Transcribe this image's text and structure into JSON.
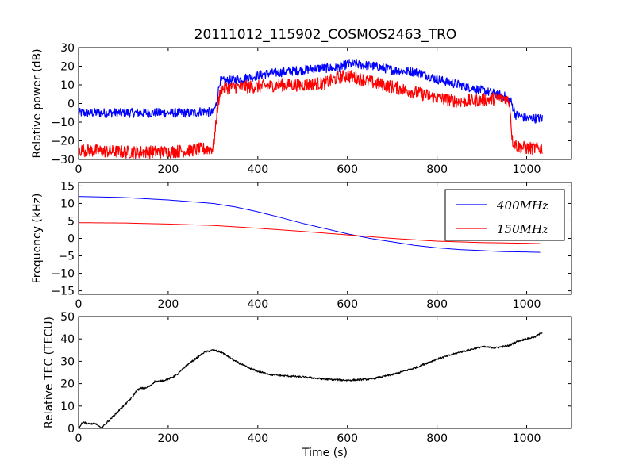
{
  "figure": {
    "title": "20111012_115902_COSMOS2463_TRO",
    "background": "#ffffff"
  },
  "chart_data": [
    {
      "type": "line",
      "title": "20111012_115902_COSMOS2463_TRO",
      "xlabel": "",
      "ylabel": "Relative power (dB)",
      "xlim": [
        0,
        1100
      ],
      "ylim": [
        -30,
        30
      ],
      "xticks": [
        0,
        200,
        400,
        600,
        800,
        1000
      ],
      "yticks": [
        -30,
        -20,
        -10,
        0,
        10,
        20,
        30
      ],
      "grid": false,
      "series": [
        {
          "color": "#0000ff",
          "noise": 2.5,
          "points": [
            [
              0,
              -5
            ],
            [
              100,
              -5
            ],
            [
              200,
              -5
            ],
            [
              260,
              -5
            ],
            [
              275,
              -4
            ],
            [
              300,
              -5
            ],
            [
              308,
              0
            ],
            [
              315,
              12
            ],
            [
              330,
              12
            ],
            [
              380,
              14
            ],
            [
              420,
              16
            ],
            [
              460,
              17
            ],
            [
              500,
              18
            ],
            [
              540,
              19
            ],
            [
              575,
              19
            ],
            [
              600,
              21
            ],
            [
              620,
              21
            ],
            [
              660,
              20
            ],
            [
              700,
              18
            ],
            [
              750,
              17
            ],
            [
              780,
              15
            ],
            [
              800,
              13
            ],
            [
              850,
              10
            ],
            [
              900,
              7
            ],
            [
              950,
              4
            ],
            [
              965,
              1
            ],
            [
              975,
              -6
            ],
            [
              1000,
              -8
            ],
            [
              1035,
              -8
            ]
          ]
        },
        {
          "color": "#ff0000",
          "noise": 3.5,
          "points": [
            [
              0,
              -25
            ],
            [
              100,
              -26
            ],
            [
              200,
              -26
            ],
            [
              250,
              -25
            ],
            [
              300,
              -24
            ],
            [
              305,
              -15
            ],
            [
              310,
              -2
            ],
            [
              318,
              8
            ],
            [
              350,
              9
            ],
            [
              400,
              9
            ],
            [
              450,
              10
            ],
            [
              500,
              10
            ],
            [
              550,
              11
            ],
            [
              580,
              14
            ],
            [
              600,
              15
            ],
            [
              620,
              14
            ],
            [
              660,
              11
            ],
            [
              700,
              9
            ],
            [
              750,
              6
            ],
            [
              800,
              3
            ],
            [
              850,
              1
            ],
            [
              900,
              2
            ],
            [
              950,
              3
            ],
            [
              962,
              1
            ],
            [
              968,
              -20
            ],
            [
              980,
              -23
            ],
            [
              1000,
              -24
            ],
            [
              1035,
              -24
            ]
          ]
        }
      ]
    },
    {
      "type": "line",
      "xlabel": "",
      "ylabel": "Frequency (kHz)",
      "xlim": [
        0,
        1100
      ],
      "ylim": [
        -16,
        16
      ],
      "xticks": [
        0,
        200,
        400,
        600,
        800,
        1000
      ],
      "yticks": [
        -15,
        -10,
        -5,
        0,
        5,
        10,
        15
      ],
      "grid": false,
      "legend_position": "top-right",
      "series": [
        {
          "name": "400MHz",
          "color": "#0000ff",
          "points": [
            [
              0,
              12
            ],
            [
              100,
              11.7
            ],
            [
              200,
              11
            ],
            [
              300,
              10
            ],
            [
              350,
              9
            ],
            [
              400,
              7.6
            ],
            [
              450,
              6
            ],
            [
              500,
              4.3
            ],
            [
              550,
              2.8
            ],
            [
              600,
              1.3
            ],
            [
              650,
              0
            ],
            [
              700,
              -1
            ],
            [
              750,
              -2
            ],
            [
              800,
              -2.7
            ],
            [
              850,
              -3.2
            ],
            [
              900,
              -3.5
            ],
            [
              950,
              -3.8
            ],
            [
              1000,
              -3.9
            ],
            [
              1030,
              -4
            ]
          ]
        },
        {
          "name": "150MHz",
          "color": "#ff0000",
          "points": [
            [
              0,
              4.5
            ],
            [
              100,
              4.4
            ],
            [
              200,
              4.1
            ],
            [
              300,
              3.7
            ],
            [
              400,
              2.9
            ],
            [
              500,
              2
            ],
            [
              600,
              1
            ],
            [
              700,
              0
            ],
            [
              800,
              -0.8
            ],
            [
              900,
              -1.2
            ],
            [
              1000,
              -1.4
            ],
            [
              1030,
              -1.5
            ]
          ]
        }
      ]
    },
    {
      "type": "line",
      "xlabel": "Time (s)",
      "ylabel": "Relative TEC (TECU)",
      "xlim": [
        0,
        1100
      ],
      "ylim": [
        0,
        50
      ],
      "xticks": [
        0,
        200,
        400,
        600,
        800,
        1000
      ],
      "yticks": [
        0,
        10,
        20,
        30,
        40,
        50
      ],
      "grid": false,
      "series": [
        {
          "color": "#000000",
          "noise": 0.4,
          "points": [
            [
              0,
              0
            ],
            [
              10,
              3
            ],
            [
              20,
              2
            ],
            [
              40,
              2
            ],
            [
              50,
              0
            ],
            [
              60,
              2
            ],
            [
              80,
              6
            ],
            [
              100,
              10
            ],
            [
              120,
              14
            ],
            [
              130,
              17
            ],
            [
              140,
              18
            ],
            [
              150,
              18
            ],
            [
              160,
              19
            ],
            [
              170,
              21
            ],
            [
              180,
              21
            ],
            [
              200,
              22
            ],
            [
              220,
              24
            ],
            [
              240,
              28
            ],
            [
              260,
              31
            ],
            [
              280,
              34
            ],
            [
              300,
              35
            ],
            [
              320,
              34
            ],
            [
              350,
              30
            ],
            [
              380,
              27
            ],
            [
              400,
              25.5
            ],
            [
              430,
              24
            ],
            [
              460,
              23.5
            ],
            [
              500,
              23
            ],
            [
              550,
              22
            ],
            [
              600,
              21.5
            ],
            [
              650,
              22
            ],
            [
              700,
              24
            ],
            [
              750,
              27
            ],
            [
              800,
              31
            ],
            [
              850,
              34
            ],
            [
              900,
              36.5
            ],
            [
              930,
              36
            ],
            [
              960,
              37
            ],
            [
              980,
              39
            ],
            [
              1000,
              40
            ],
            [
              1020,
              41
            ],
            [
              1035,
              43
            ]
          ]
        }
      ]
    }
  ]
}
